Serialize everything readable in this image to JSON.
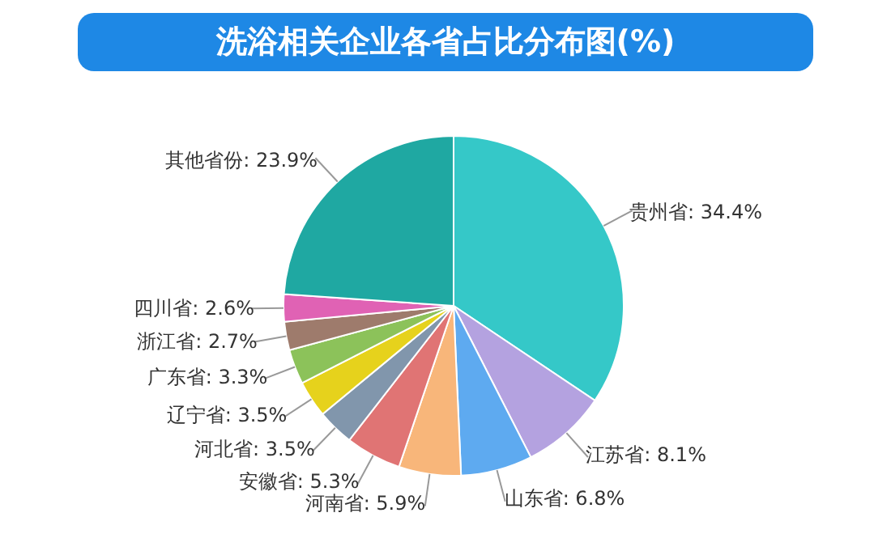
{
  "chart_data": {
    "type": "pie",
    "title": "洗浴相关企业各省占比分布图(%)",
    "categories": [
      "贵州省",
      "江苏省",
      "山东省",
      "河南省",
      "安徽省",
      "河北省",
      "辽宁省",
      "广东省",
      "浙江省",
      "四川省",
      "其他省份"
    ],
    "values": [
      34.4,
      8.1,
      6.8,
      5.9,
      5.3,
      3.5,
      3.5,
      3.3,
      2.7,
      2.6,
      23.9
    ],
    "value_labels": [
      "34.4%",
      "8.1%",
      "6.8%",
      "5.9%",
      "5.3%",
      "3.5%",
      "3.5%",
      "3.3%",
      "2.7%",
      "2.6%",
      "23.9%"
    ],
    "colors": [
      "#35c8c8",
      "#b4a2e0",
      "#5eaaf0",
      "#f8b67a",
      "#e07474",
      "#8196ac",
      "#e6d21c",
      "#8cc25a",
      "#9e7b6c",
      "#e062b4",
      "#1fa8a2"
    ],
    "legend": false
  }
}
